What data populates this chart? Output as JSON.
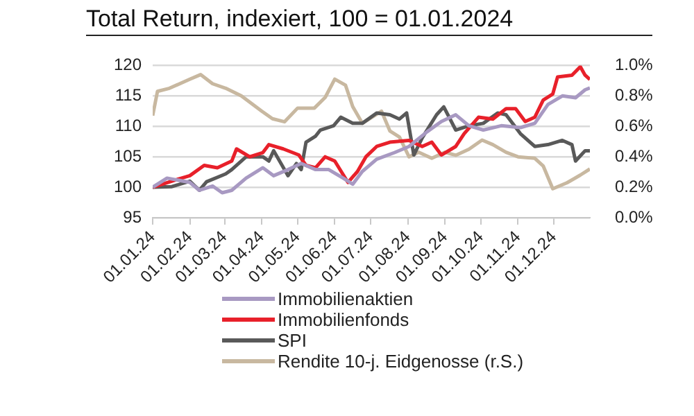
{
  "chart_data": {
    "type": "line",
    "title": "Total Return, indexiert, 100 = 01.01.2024",
    "xlim": [
      "2024-01-01",
      "2024-12-31"
    ],
    "xticks": [
      {
        "value": "2024-01-01",
        "label": "01.01.24"
      },
      {
        "value": "2024-02-01",
        "label": "01.02.24"
      },
      {
        "value": "2024-03-01",
        "label": "01.03.24"
      },
      {
        "value": "2024-04-01",
        "label": "01.04.24"
      },
      {
        "value": "2024-05-01",
        "label": "01.05.24"
      },
      {
        "value": "2024-06-01",
        "label": "01.06.24"
      },
      {
        "value": "2024-07-01",
        "label": "01.07.24"
      },
      {
        "value": "2024-08-01",
        "label": "01.08.24"
      },
      {
        "value": "2024-09-01",
        "label": "01.09.24"
      },
      {
        "value": "2024-10-01",
        "label": "01.10.24"
      },
      {
        "value": "2024-11-01",
        "label": "01.11.24"
      },
      {
        "value": "2024-12-01",
        "label": "01.12.24"
      }
    ],
    "ylim": [
      95,
      120
    ],
    "yticks": [
      95,
      100,
      105,
      110,
      115,
      120
    ],
    "y2lim": [
      0,
      1
    ],
    "y2ticks": [
      {
        "value": 0,
        "label": "0.0%"
      },
      {
        "value": 0.2,
        "label": "0.2%"
      },
      {
        "value": 0.4,
        "label": "0.4%"
      },
      {
        "value": 0.6,
        "label": "0.6%"
      },
      {
        "value": 0.8,
        "label": "0.8%"
      },
      {
        "value": 1,
        "label": "1.0%"
      }
    ],
    "grid": "y",
    "legend": "bottom",
    "marker": "none",
    "line_style": "solid",
    "series": [
      {
        "name": "Immobilienaktien",
        "color": "#a899c2",
        "x": [
          "2024-01-01",
          "2024-01-13",
          "2024-02-01",
          "2024-02-09",
          "2024-02-20",
          "2024-02-28",
          "2024-03-07",
          "2024-03-19",
          "2024-04-02",
          "2024-04-11",
          "2024-04-23",
          "2024-05-04",
          "2024-05-16",
          "2024-05-27",
          "2024-06-08",
          "2024-06-16",
          "2024-06-24",
          "2024-07-06",
          "2024-07-21",
          "2024-08-02",
          "2024-08-17",
          "2024-08-29",
          "2024-09-10",
          "2024-09-21",
          "2024-10-03",
          "2024-10-18",
          "2024-11-03",
          "2024-11-15",
          "2024-11-26",
          "2024-12-08",
          "2024-12-19",
          "2024-12-27",
          "2024-12-31"
        ],
        "values": [
          100,
          101.5,
          100.8,
          99.5,
          100.2,
          99.1,
          99.5,
          101.5,
          103.2,
          101.9,
          102.9,
          103.9,
          102.9,
          102.9,
          101.5,
          100.5,
          102.6,
          104.6,
          105.7,
          106.7,
          109.1,
          110.8,
          111.9,
          110.1,
          109.4,
          110.1,
          109.8,
          110.5,
          113.6,
          115,
          114.7,
          116,
          116.3
        ]
      },
      {
        "name": "Immobilienfonds",
        "color": "#e8202a",
        "x": [
          "2024-01-01",
          "2024-01-20",
          "2024-02-01",
          "2024-02-13",
          "2024-02-24",
          "2024-03-07",
          "2024-03-11",
          "2024-03-22",
          "2024-04-02",
          "2024-04-07",
          "2024-04-19",
          "2024-05-02",
          "2024-05-08",
          "2024-05-16",
          "2024-05-24",
          "2024-06-01",
          "2024-06-12",
          "2024-06-20",
          "2024-06-27",
          "2024-07-06",
          "2024-07-17",
          "2024-08-02",
          "2024-08-13",
          "2024-08-21",
          "2024-08-29",
          "2024-09-10",
          "2024-09-17",
          "2024-09-29",
          "2024-10-11",
          "2024-10-22",
          "2024-10-30",
          "2024-11-07",
          "2024-11-15",
          "2024-11-22",
          "2024-11-30",
          "2024-12-04",
          "2024-12-16",
          "2024-12-23",
          "2024-12-27",
          "2024-12-31"
        ],
        "values": [
          100,
          101.2,
          101.9,
          103.6,
          103.2,
          104.3,
          106.3,
          105,
          105.7,
          107,
          106.3,
          105.3,
          103.6,
          103.2,
          105,
          104.3,
          100.8,
          102.6,
          105,
          106.7,
          107.4,
          107.7,
          106.7,
          107.4,
          105.3,
          106.7,
          108.8,
          111.5,
          111.2,
          112.9,
          112.9,
          110.8,
          111.5,
          114.3,
          115.3,
          118.1,
          118.4,
          119.8,
          118.4,
          117.7
        ]
      },
      {
        "name": "SPI",
        "color": "#595959",
        "x": [
          "2024-01-01",
          "2024-01-17",
          "2024-02-01",
          "2024-02-09",
          "2024-02-15",
          "2024-03-02",
          "2024-03-07",
          "2024-03-19",
          "2024-04-02",
          "2024-04-07",
          "2024-04-11",
          "2024-04-23",
          "2024-04-30",
          "2024-05-04",
          "2024-05-08",
          "2024-05-16",
          "2024-05-20",
          "2024-05-31",
          "2024-06-06",
          "2024-06-16",
          "2024-06-24",
          "2024-07-06",
          "2024-07-17",
          "2024-07-25",
          "2024-07-31",
          "2024-08-06",
          "2024-08-13",
          "2024-08-25",
          "2024-08-31",
          "2024-09-10",
          "2024-09-21",
          "2024-10-03",
          "2024-10-15",
          "2024-10-22",
          "2024-11-03",
          "2024-11-15",
          "2024-11-26",
          "2024-12-08",
          "2024-12-16",
          "2024-12-19",
          "2024-12-27",
          "2024-12-31"
        ],
        "values": [
          100,
          100.1,
          101,
          99.5,
          100.9,
          102.2,
          102.9,
          105,
          105,
          104.3,
          106,
          101.9,
          103.9,
          102.9,
          107.4,
          108.4,
          109.4,
          110.1,
          111.5,
          110.5,
          110.5,
          112.2,
          111.9,
          111.2,
          112.2,
          105.3,
          108.1,
          111.9,
          113.2,
          109.4,
          110.1,
          110.5,
          112.2,
          111.9,
          108.8,
          106.7,
          107,
          107.7,
          107,
          104.3,
          106,
          106
        ]
      },
      {
        "name": "Rendite 10-j. Eidgenosse (r.S.)",
        "color": "#c8b8a0",
        "axis": "y2",
        "x": [
          "2024-01-01",
          "2024-01-05",
          "2024-01-15",
          "2024-02-01",
          "2024-02-10",
          "2024-02-20",
          "2024-03-02",
          "2024-03-15",
          "2024-04-01",
          "2024-04-10",
          "2024-04-20",
          "2024-05-01",
          "2024-05-15",
          "2024-05-24",
          "2024-06-01",
          "2024-06-10",
          "2024-06-16",
          "2024-06-24",
          "2024-07-10",
          "2024-07-17",
          "2024-07-25",
          "2024-08-02",
          "2024-08-10",
          "2024-08-21",
          "2024-09-01",
          "2024-09-10",
          "2024-09-21",
          "2024-10-02",
          "2024-10-11",
          "2024-10-22",
          "2024-11-01",
          "2024-11-15",
          "2024-11-22",
          "2024-11-30",
          "2024-12-12",
          "2024-12-23",
          "2024-12-31"
        ],
        "values": [
          0.67,
          0.83,
          0.85,
          0.91,
          0.94,
          0.88,
          0.85,
          0.8,
          0.7,
          0.65,
          0.63,
          0.72,
          0.72,
          0.79,
          0.91,
          0.87,
          0.73,
          0.62,
          0.7,
          0.57,
          0.53,
          0.4,
          0.43,
          0.39,
          0.43,
          0.41,
          0.45,
          0.51,
          0.48,
          0.43,
          0.4,
          0.39,
          0.34,
          0.19,
          0.23,
          0.28,
          0.32
        ]
      }
    ]
  }
}
